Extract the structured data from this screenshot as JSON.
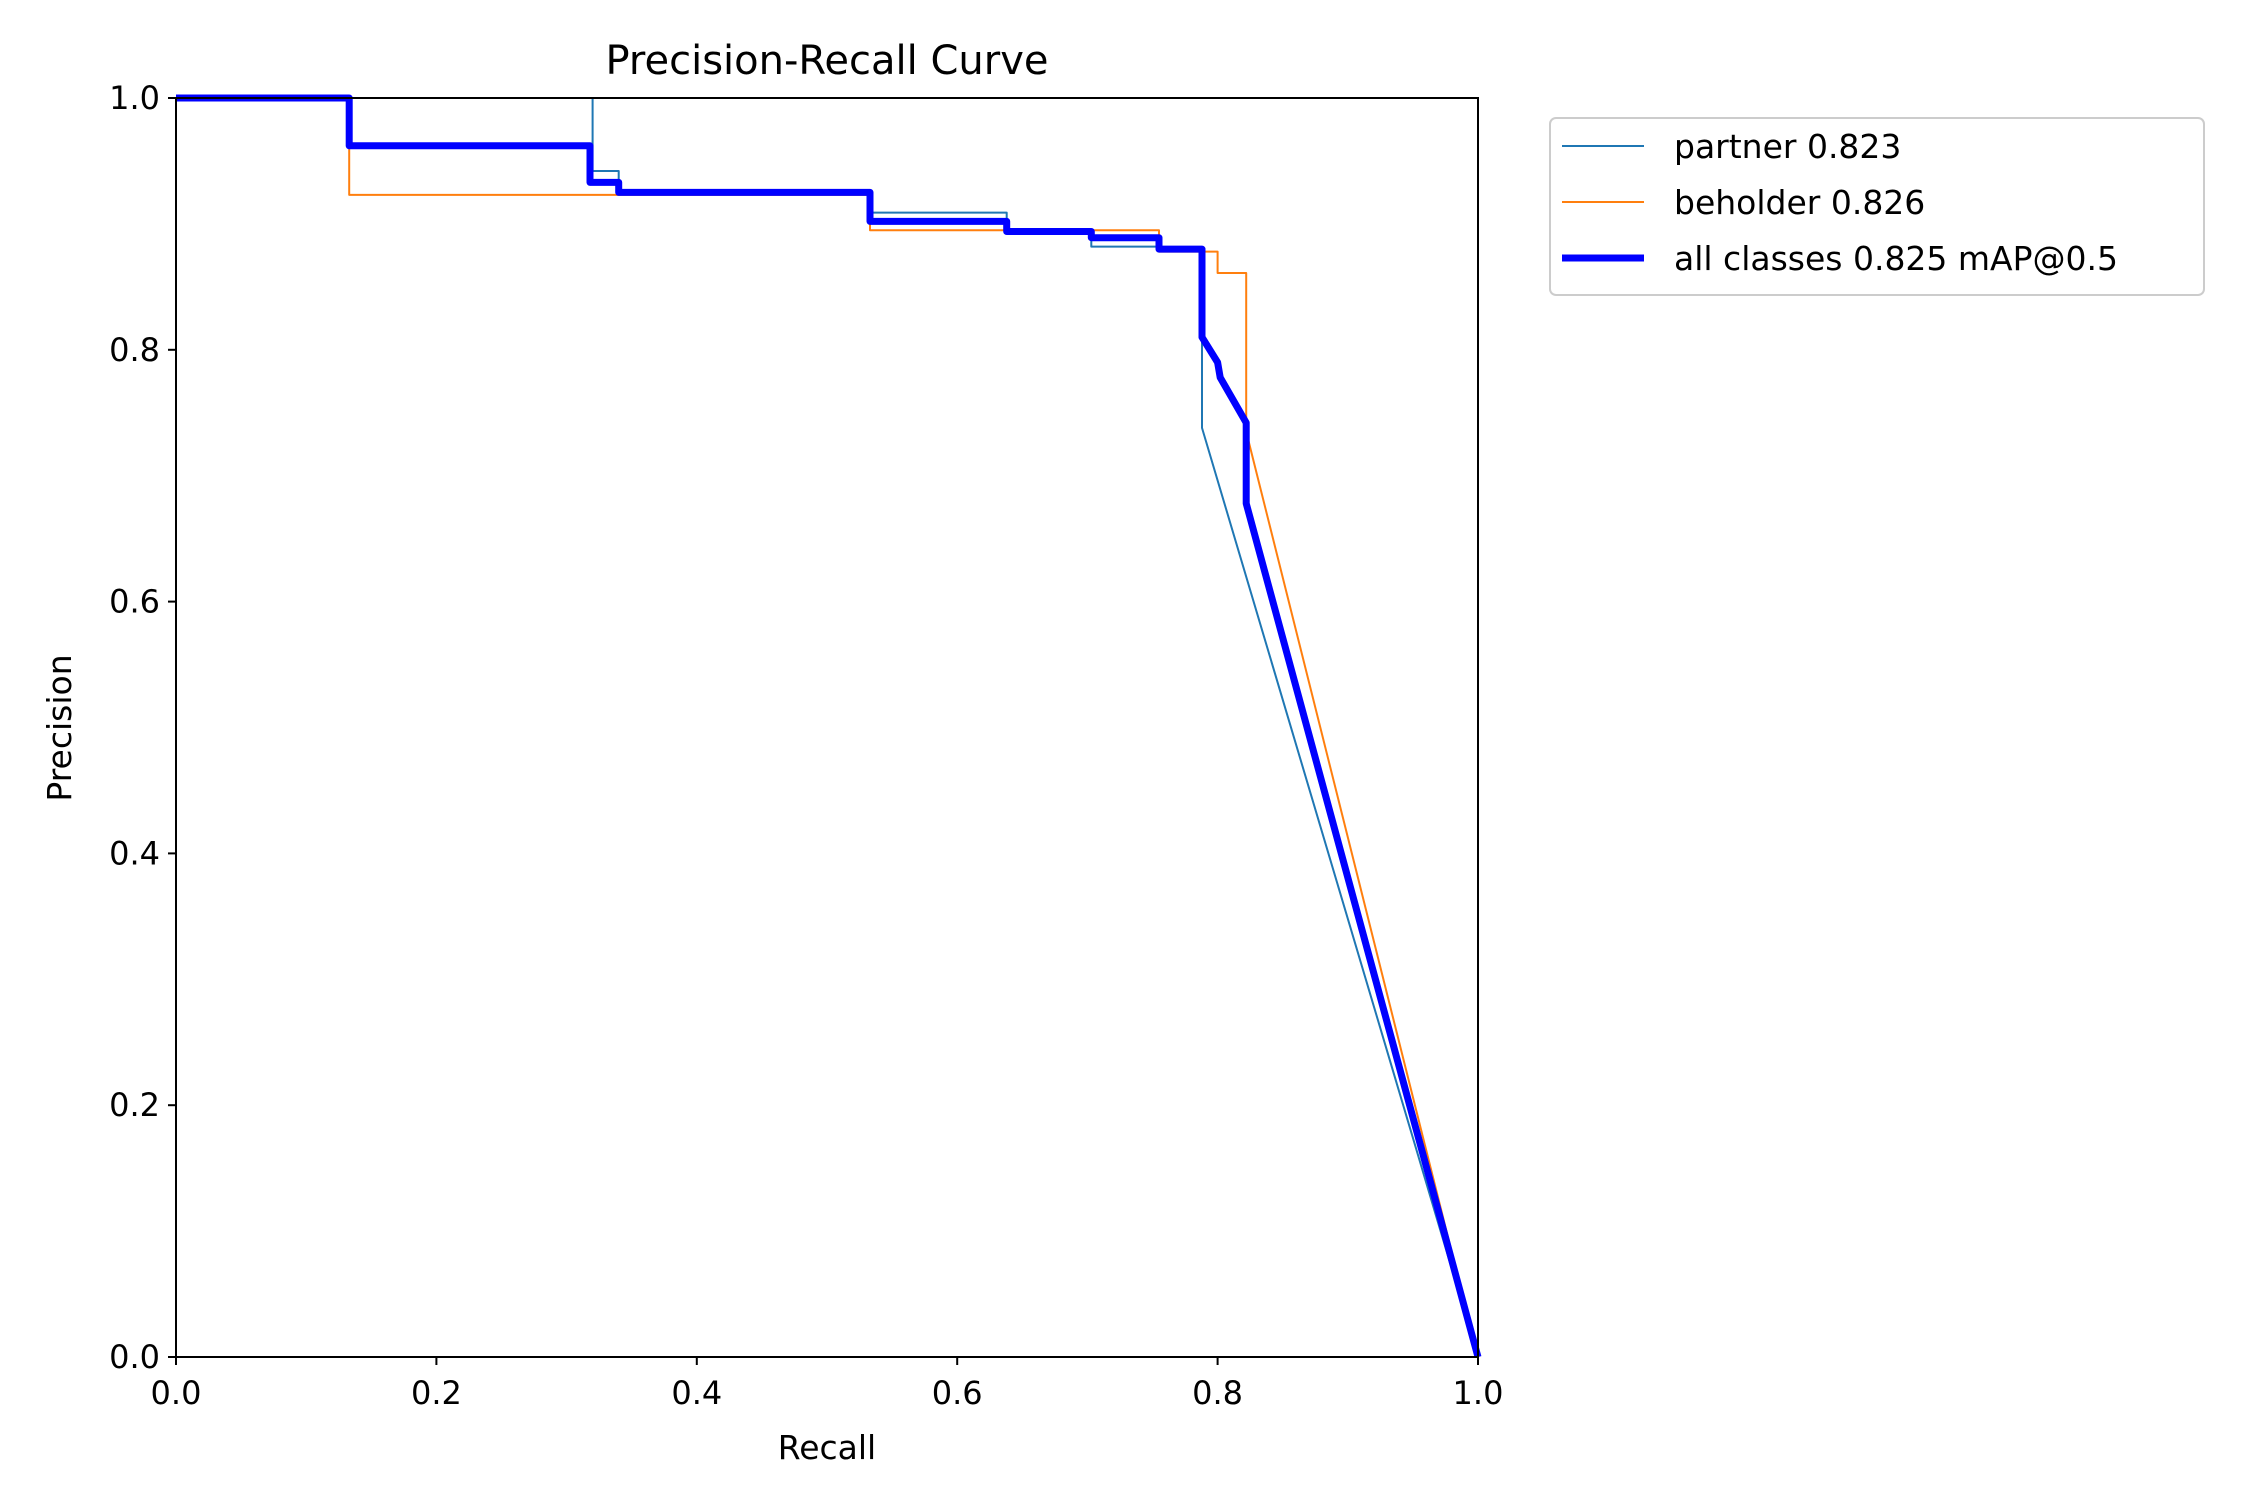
{
  "chart_data": {
    "type": "line",
    "title": "Precision-Recall Curve",
    "xlabel": "Recall",
    "ylabel": "Precision",
    "xlim": [
      0.0,
      1.0
    ],
    "ylim": [
      0.0,
      1.0
    ],
    "xticks": [
      "0.0",
      "0.2",
      "0.4",
      "0.6",
      "0.8",
      "1.0"
    ],
    "yticks": [
      "0.0",
      "0.2",
      "0.4",
      "0.6",
      "0.8",
      "1.0"
    ],
    "grid": false,
    "legend_position": "outside-top-right",
    "series": [
      {
        "name": "partner 0.823",
        "color": "#1f77b4",
        "linewidth": "thin",
        "x": [
          0.0,
          0.318,
          0.318,
          0.32,
          0.32,
          0.34,
          0.34,
          0.533,
          0.533,
          0.638,
          0.638,
          0.703,
          0.703,
          0.755,
          0.755,
          0.788,
          0.788,
          1.0
        ],
        "y": [
          1.0,
          1.0,
          1.0,
          1.0,
          0.942,
          0.942,
          0.926,
          0.926,
          0.909,
          0.909,
          0.894,
          0.894,
          0.882,
          0.882,
          0.88,
          0.88,
          0.738,
          0.0
        ]
      },
      {
        "name": "beholder 0.826",
        "color": "#ff7f0e",
        "linewidth": "thin",
        "x": [
          0.0,
          0.133,
          0.133,
          0.318,
          0.318,
          0.533,
          0.533,
          0.638,
          0.638,
          0.703,
          0.703,
          0.755,
          0.755,
          0.8,
          0.8,
          0.822,
          0.822,
          1.0
        ],
        "y": [
          1.0,
          1.0,
          0.923,
          0.923,
          0.923,
          0.923,
          0.895,
          0.895,
          0.895,
          0.895,
          0.895,
          0.895,
          0.878,
          0.878,
          0.861,
          0.861,
          0.735,
          0.0
        ]
      },
      {
        "name": "all classes 0.825 mAP@0.5",
        "color": "#0000ff",
        "linewidth": "thick",
        "x": [
          0.0,
          0.133,
          0.133,
          0.318,
          0.318,
          0.34,
          0.34,
          0.533,
          0.533,
          0.638,
          0.638,
          0.703,
          0.703,
          0.755,
          0.755,
          0.788,
          0.788,
          0.8,
          0.802,
          0.822,
          0.822,
          1.0
        ],
        "y": [
          1.0,
          1.0,
          0.962,
          0.962,
          0.933,
          0.933,
          0.925,
          0.925,
          0.902,
          0.902,
          0.894,
          0.894,
          0.889,
          0.889,
          0.88,
          0.88,
          0.81,
          0.79,
          0.778,
          0.742,
          0.678,
          0.0
        ]
      }
    ]
  }
}
